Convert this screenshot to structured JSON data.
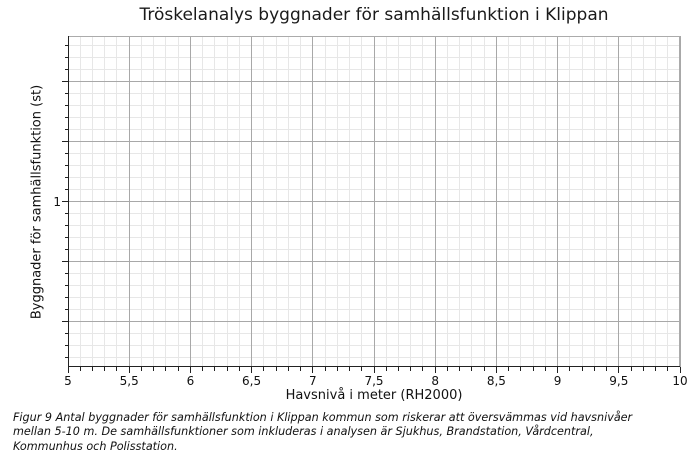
{
  "figure": {
    "caption_lines": [
      "Figur 9 Antal byggnader för samhällsfunktion i Klippan kommun som riskerar att översvämmas vid havsnivåer",
      "mellan 5-10 m. De samhällsfunktioner som inkluderas i analysen är Sjukhus, Brandstation, Vårdcentral,",
      "Kommunhus och Polisstation."
    ]
  },
  "chart_data": {
    "type": "line",
    "title": "Tröskelanalys byggnader för samhällsfunktion i Klippan",
    "xlabel": "Havsnivå i meter (RH2000)",
    "ylabel": "Byggnader för samhällsfunktion (st)",
    "x_axis": {
      "min": 5,
      "max": 10,
      "major_step": 0.5,
      "minor_step": 0.1,
      "decimal_separator": ",",
      "tick_labels": [
        "5",
        "5,5",
        "6",
        "6,5",
        "7",
        "7,5",
        "8",
        "8,5",
        "9",
        "9,5",
        "10"
      ]
    },
    "y_axis": {
      "scale": "log",
      "tick_labels": [
        "1"
      ]
    },
    "grid": {
      "major": true,
      "minor": true
    },
    "legend": null,
    "series": [],
    "note": "plot area is empty - no data series visible between 5 and 10 m"
  },
  "colors": {
    "background": "#ffffff",
    "grid_minor": "#e7e7e7",
    "grid_major": "#a8a8a8",
    "spine_dark": "#222222",
    "spine_light": "#ababab",
    "text": "#111111"
  }
}
